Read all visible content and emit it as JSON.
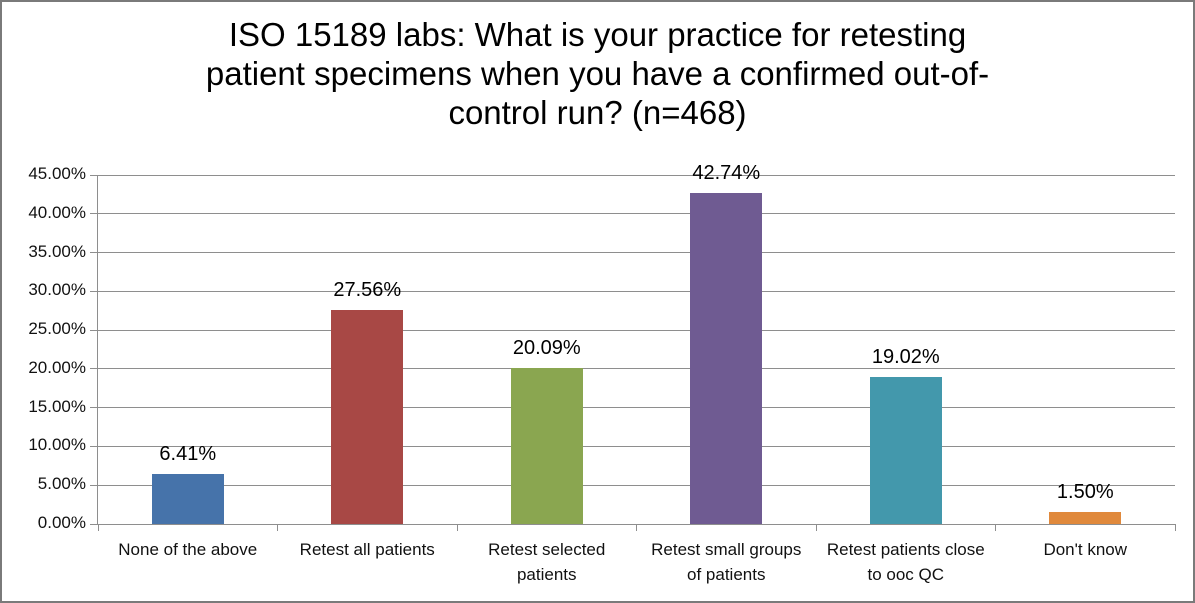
{
  "chart_data": {
    "type": "bar",
    "title": "ISO 15189 labs: What is your practice for retesting patient specimens when you have a confirmed out-of-control run? (n=468)",
    "title_lines": [
      "ISO 15189 labs: What is your practice for retesting",
      "patient specimens when you have a confirmed out-of-",
      "control run? (n=468)"
    ],
    "n_respondents": 468,
    "categories": [
      "None of the above",
      "Retest all patients",
      "Retest selected patients",
      "Retest small groups of patients",
      "Retest patients close to ooc QC",
      "Don't know"
    ],
    "values": [
      6.41,
      27.56,
      20.09,
      42.74,
      19.02,
      1.5
    ],
    "data_labels": [
      "6.41%",
      "27.56%",
      "20.09%",
      "42.74%",
      "19.02%",
      "1.50%"
    ],
    "bar_colors": [
      "#4673aa",
      "#a84845",
      "#8aa650",
      "#6f5b92",
      "#4398ac",
      "#e0893c"
    ],
    "xlabel": "",
    "ylabel": "",
    "ylim": [
      0,
      45
    ],
    "yticks": [
      0,
      5,
      10,
      15,
      20,
      25,
      30,
      35,
      40,
      45
    ],
    "ytick_labels": [
      "0.00%",
      "5.00%",
      "10.00%",
      "15.00%",
      "20.00%",
      "25.00%",
      "30.00%",
      "35.00%",
      "40.00%",
      "45.00%"
    ],
    "grid": "horizontal",
    "legend": "none",
    "gridline_color": "#8e8e8e",
    "axis_color": "#8e8e8e",
    "background_color": "#ffffff",
    "border_color": "#7a7a7a"
  }
}
